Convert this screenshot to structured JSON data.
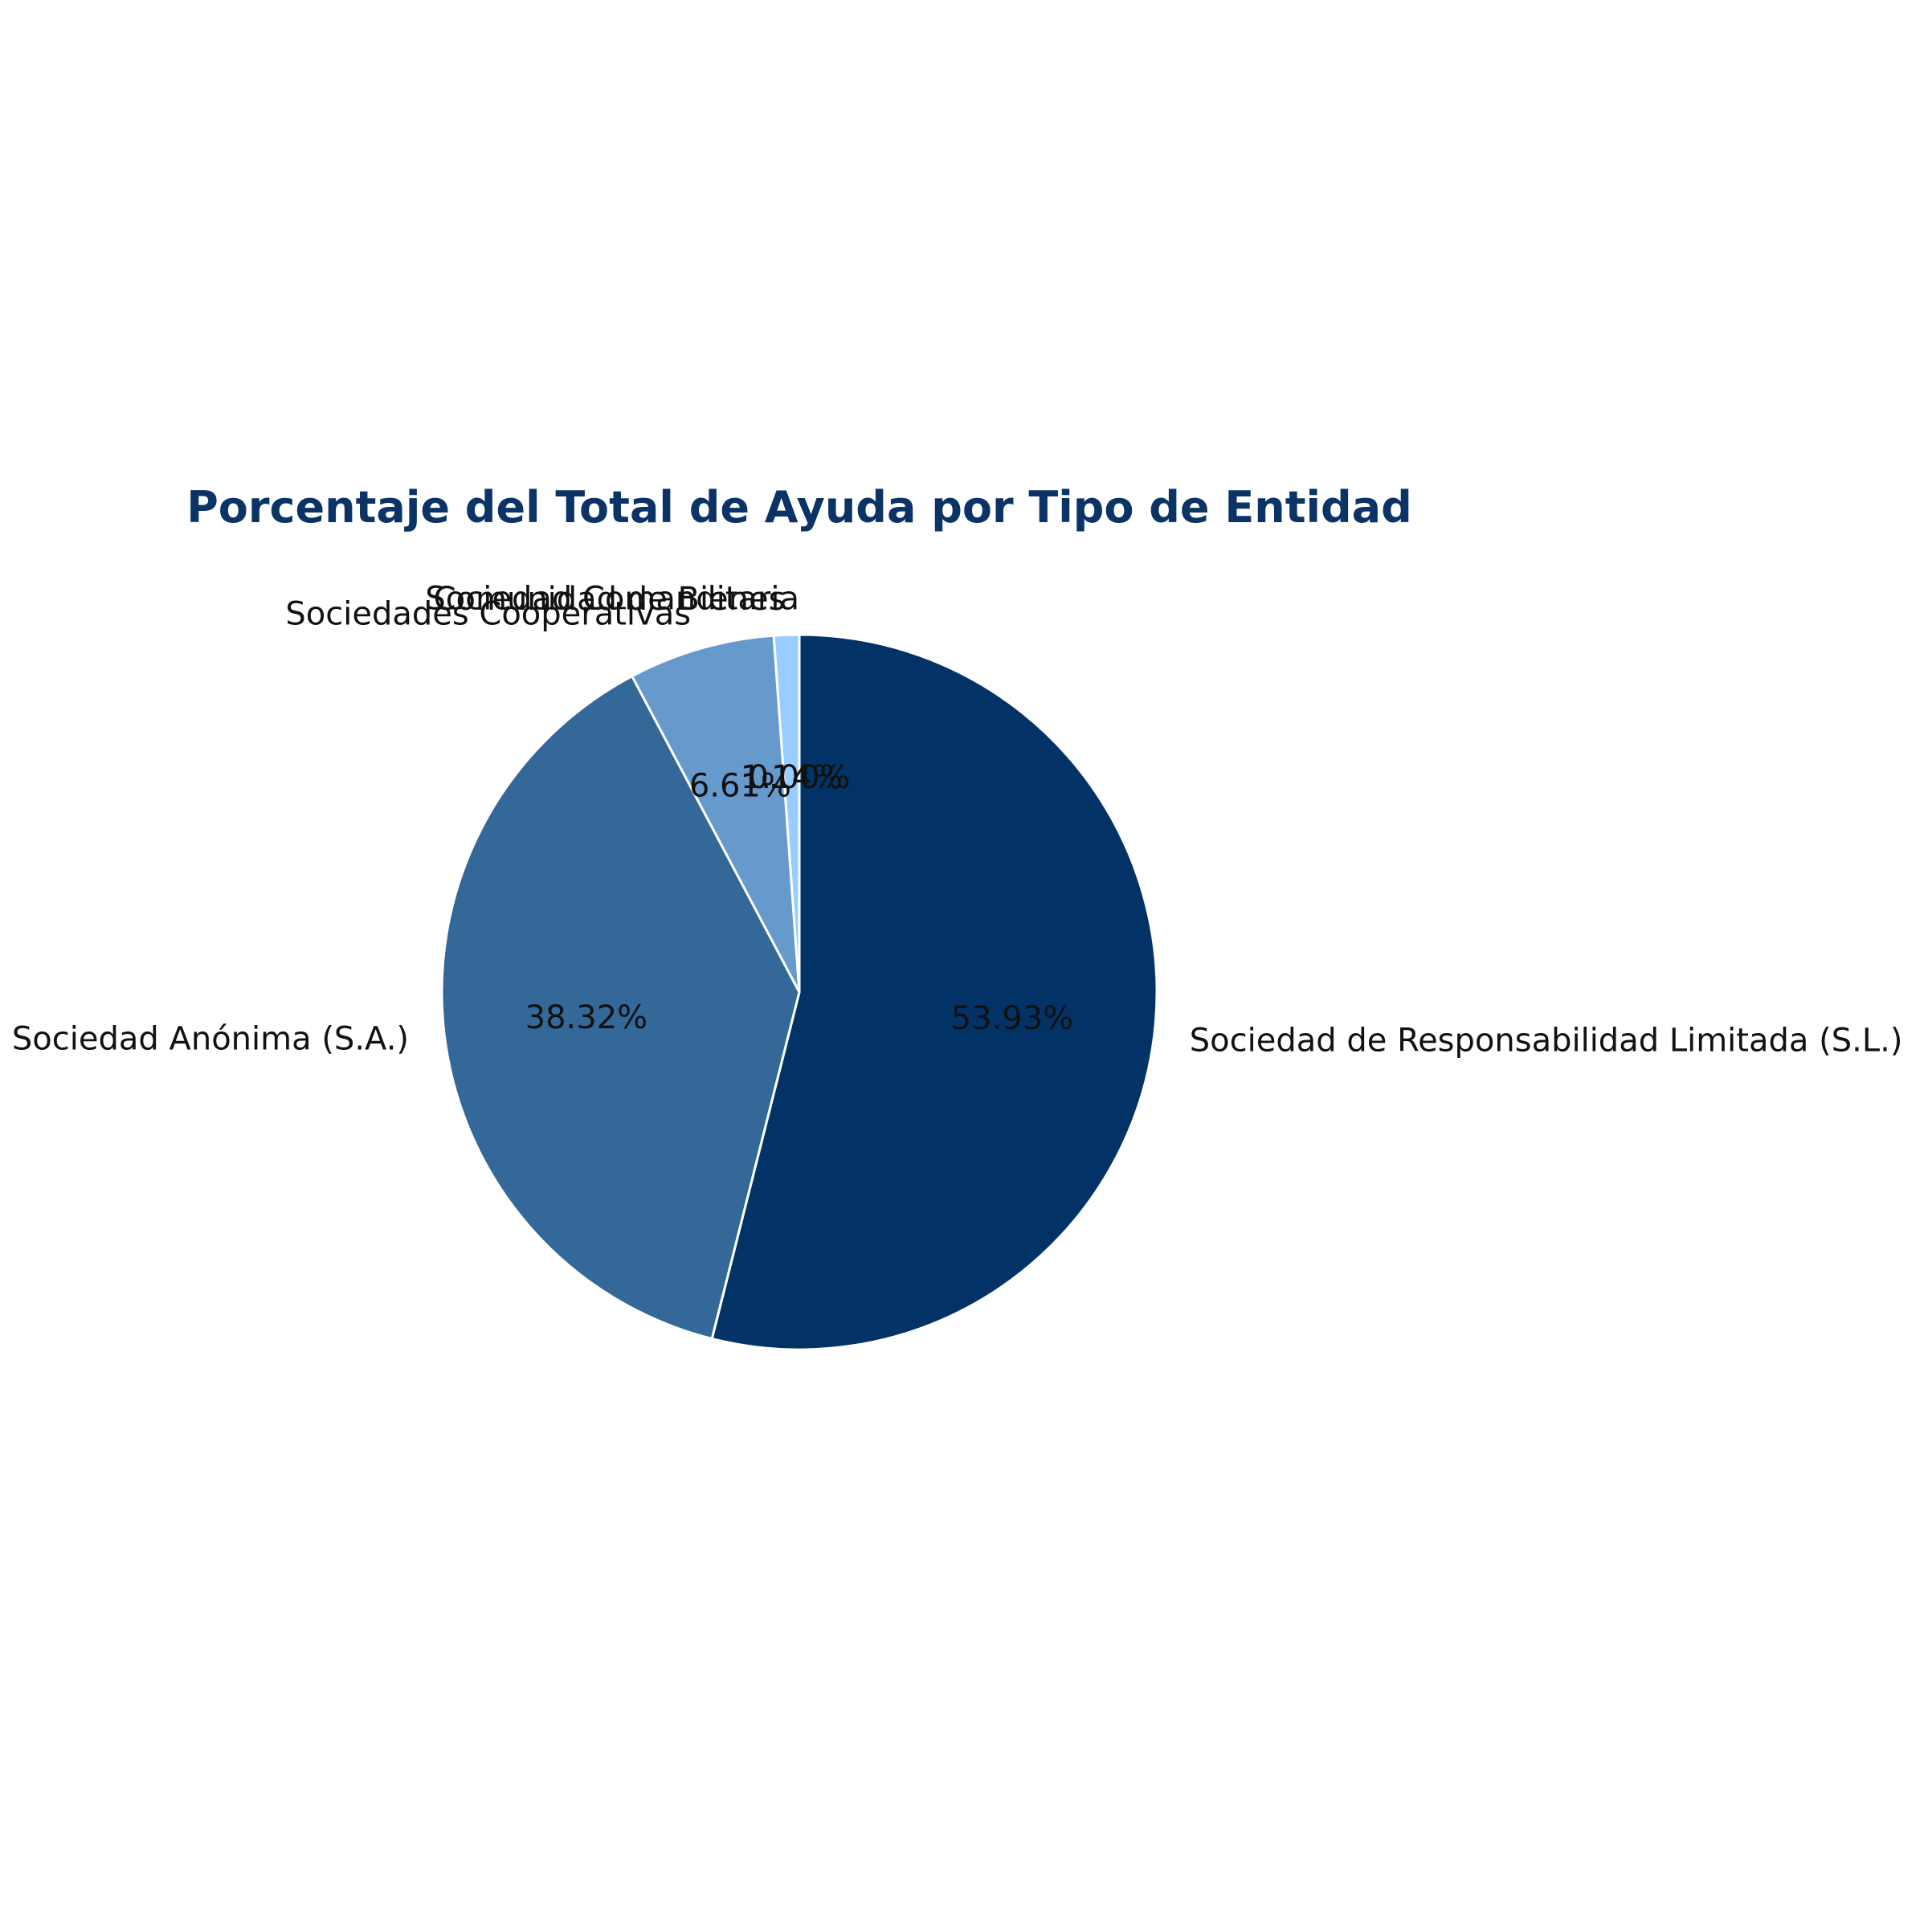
{
  "chart_data": {
    "type": "pie",
    "title": "Porcentaje del Total de Ayuda por Tipo de Entidad",
    "start_angle_deg": 90,
    "direction": "clockwise",
    "slices": [
      {
        "label": "Sociedad de Responsabilidad Limitada (S.L.)",
        "value": 53.93,
        "pct_label": "53.93%",
        "color": "#033366"
      },
      {
        "label": "Sociedad Anónima (S.A.)",
        "value": 38.32,
        "pct_label": "38.32%",
        "color": "#346899"
      },
      {
        "label": "Sociedades Cooperativas",
        "value": 6.61,
        "pct_label": "6.61%",
        "color": "#6699cc"
      },
      {
        "label": "Comunidad de Bienes",
        "value": 1.14,
        "pct_label": "1.14%",
        "color": "#99ccff"
      },
      {
        "label": "Sociedad Comanditaria",
        "value": 0.0,
        "pct_label": "0.00%",
        "color": "#cce5ff"
      }
    ],
    "slice_edge_color": "#ffffff"
  }
}
